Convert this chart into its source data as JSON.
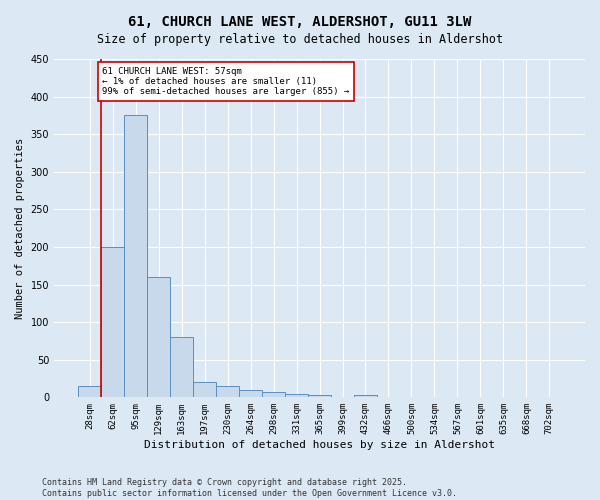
{
  "title_line1": "61, CHURCH LANE WEST, ALDERSHOT, GU11 3LW",
  "title_line2": "Size of property relative to detached houses in Aldershot",
  "xlabel": "Distribution of detached houses by size in Aldershot",
  "ylabel": "Number of detached properties",
  "categories": [
    "28sqm",
    "62sqm",
    "95sqm",
    "129sqm",
    "163sqm",
    "197sqm",
    "230sqm",
    "264sqm",
    "298sqm",
    "331sqm",
    "365sqm",
    "399sqm",
    "432sqm",
    "466sqm",
    "500sqm",
    "534sqm",
    "567sqm",
    "601sqm",
    "635sqm",
    "668sqm",
    "702sqm"
  ],
  "values": [
    15,
    200,
    375,
    160,
    80,
    20,
    15,
    10,
    7,
    5,
    3,
    0,
    3,
    0,
    0,
    0,
    0,
    0,
    0,
    0,
    0
  ],
  "bar_color": "#c9d9ec",
  "bar_edge_color": "#5a8fc0",
  "vline_color": "#cc0000",
  "annotation_text": "61 CHURCH LANE WEST: 57sqm\n← 1% of detached houses are smaller (11)\n99% of semi-detached houses are larger (855) →",
  "annotation_box_color": "#ffffff",
  "annotation_box_edge_color": "#cc0000",
  "ylim": [
    0,
    450
  ],
  "yticks": [
    0,
    50,
    100,
    150,
    200,
    250,
    300,
    350,
    400,
    450
  ],
  "grid_color": "#ffffff",
  "background_color": "#dce9f5",
  "footer_text": "Contains HM Land Registry data © Crown copyright and database right 2025.\nContains public sector information licensed under the Open Government Licence v3.0.",
  "title_fontsize": 10,
  "subtitle_fontsize": 8.5,
  "annotation_fontsize": 6.5,
  "footer_fontsize": 6,
  "ylabel_fontsize": 7.5,
  "xlabel_fontsize": 8,
  "tick_fontsize": 6.5,
  "ytick_fontsize": 7
}
